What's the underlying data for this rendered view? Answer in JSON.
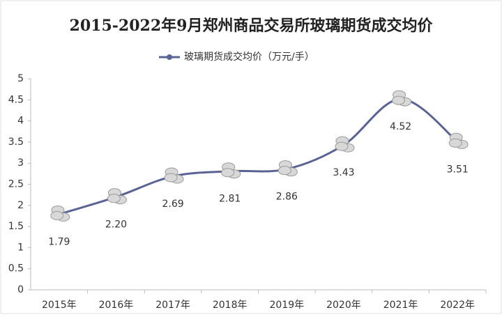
{
  "chart_data": {
    "type": "line",
    "title": "2015-2022年9月郑州商品交易所玻璃期货成交均价",
    "categories": [
      "2015年",
      "2016年",
      "2017年",
      "2018年",
      "2019年",
      "2020年",
      "2021年",
      "2022年"
    ],
    "series": [
      {
        "name": "玻璃期货成交均价（万元/手）",
        "color": "#5b6394",
        "values": [
          1.79,
          2.2,
          2.69,
          2.81,
          2.86,
          3.43,
          4.52,
          3.51
        ],
        "value_labels": [
          "1.79",
          "2.20",
          "2.69",
          "2.81",
          "2.86",
          "3.43",
          "4.52",
          "3.51"
        ]
      }
    ],
    "ylim": [
      0,
      5
    ],
    "yticks": [
      0,
      0.5,
      1,
      1.5,
      2,
      2.5,
      3,
      3.5,
      4,
      4.5,
      5
    ],
    "grid": false
  }
}
